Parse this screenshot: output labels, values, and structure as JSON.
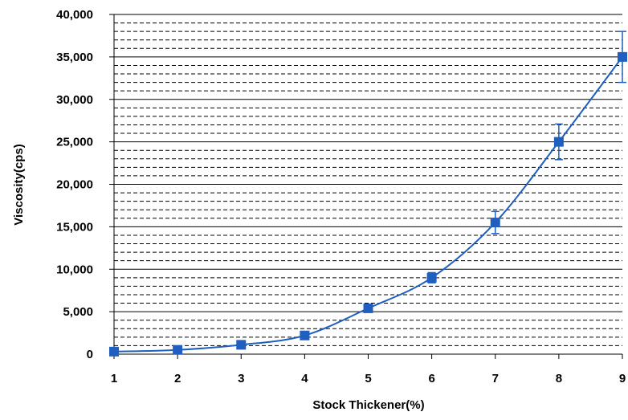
{
  "chart_data": {
    "type": "line",
    "xlabel": "Stock Thickener(%)",
    "ylabel": "Viscosity(cps)",
    "x": [
      1,
      2,
      3,
      4,
      5,
      6,
      7,
      8,
      9
    ],
    "xticks": [
      "1",
      "2",
      "3",
      "4",
      "5",
      "6",
      "7",
      "8",
      "9"
    ],
    "ylim": [
      0,
      40000
    ],
    "yticks": [
      "0",
      "5,000",
      "10,000",
      "15,000",
      "20,000",
      "25,000",
      "30,000",
      "35,000",
      "40,000"
    ],
    "grid": {
      "major_step": 5000,
      "minor_step": 1000
    },
    "series": [
      {
        "values": [
          300,
          500,
          1100,
          2200,
          5400,
          9000,
          15500,
          25000,
          35000
        ],
        "error": [
          0,
          0,
          0,
          0,
          0,
          600,
          1300,
          2100,
          3000
        ],
        "color": "#1f5fbf"
      }
    ]
  }
}
